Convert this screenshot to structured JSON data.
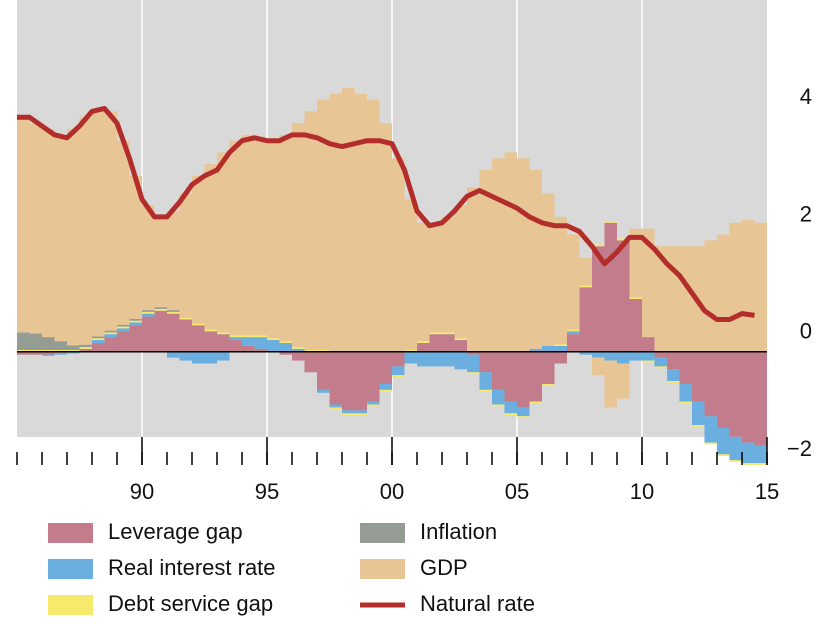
{
  "chart_data": {
    "type": "bar",
    "stacked": true,
    "x": [
      1985,
      1985.5,
      1986,
      1986.5,
      1987,
      1987.5,
      1988,
      1988.5,
      1989,
      1989.5,
      1990,
      1990.5,
      1991,
      1991.5,
      1992,
      1992.5,
      1993,
      1993.5,
      1994,
      1994.5,
      1995,
      1995.5,
      1996,
      1996.5,
      1997,
      1997.5,
      1998,
      1998.5,
      1999,
      1999.5,
      2000,
      2000.5,
      2001,
      2001.5,
      2002,
      2002.5,
      2003,
      2003.5,
      2004,
      2004.5,
      2005,
      2005.5,
      2006,
      2006.5,
      2007,
      2007.5,
      2008,
      2008.5,
      2009,
      2009.5,
      2010,
      2010.5,
      2011,
      2011.5,
      2012,
      2012.5,
      2013,
      2013.5,
      2014,
      2014.5
    ],
    "series": [
      {
        "name": "Leverage gap",
        "color": "#c27c8c",
        "values": [
          -0.05,
          -0.05,
          -0.05,
          -0.02,
          0,
          0.05,
          0.15,
          0.25,
          0.35,
          0.45,
          0.6,
          0.7,
          0.65,
          0.55,
          0.45,
          0.35,
          0.3,
          0.2,
          0.1,
          0.05,
          0,
          -0.05,
          -0.15,
          -0.35,
          -0.65,
          -0.9,
          -1.0,
          -1.0,
          -0.85,
          -0.55,
          -0.25,
          0,
          0.15,
          0.3,
          0.3,
          0.2,
          -0.05,
          -0.35,
          -0.65,
          -0.85,
          -0.95,
          -0.85,
          -0.55,
          -0.2,
          0.3,
          1.1,
          1.8,
          2.2,
          1.9,
          0.9,
          0.25,
          -0.1,
          -0.3,
          -0.55,
          -0.85,
          -1.1,
          -1.3,
          -1.45,
          -1.55,
          -1.6
        ]
      },
      {
        "name": "Real interest rate",
        "color": "#6aafe0",
        "values": [
          0,
          0,
          -0.02,
          -0.03,
          -0.03,
          0,
          0.05,
          0.05,
          0.05,
          0.05,
          0.05,
          0,
          -0.1,
          -0.15,
          -0.2,
          -0.2,
          -0.15,
          0.05,
          0.15,
          0.2,
          0.2,
          0.15,
          0.05,
          0,
          -0.05,
          -0.05,
          -0.05,
          -0.05,
          -0.05,
          -0.1,
          -0.15,
          -0.2,
          -0.25,
          -0.25,
          -0.25,
          -0.3,
          -0.3,
          -0.3,
          -0.25,
          -0.2,
          -0.15,
          0.05,
          0.1,
          0.1,
          0.05,
          -0.05,
          -0.1,
          -0.15,
          -0.2,
          -0.15,
          -0.15,
          -0.15,
          -0.2,
          -0.3,
          -0.4,
          -0.45,
          -0.45,
          -0.4,
          -0.35,
          -0.3
        ]
      },
      {
        "name": "Debt service gap",
        "color": "#f7e96b",
        "values": [
          0.03,
          0.03,
          0.03,
          0.03,
          0.03,
          0.03,
          0.03,
          0.03,
          0.03,
          0.03,
          0.03,
          0.03,
          0.03,
          0.03,
          0.03,
          0.03,
          0.03,
          0.03,
          0.03,
          0.03,
          0.03,
          0.03,
          0.03,
          0.03,
          0.03,
          -0.03,
          -0.03,
          -0.03,
          -0.03,
          -0.03,
          -0.03,
          0.03,
          0.03,
          0.03,
          0.03,
          0.03,
          -0.03,
          -0.03,
          -0.03,
          -0.03,
          -0.03,
          -0.03,
          -0.03,
          0.03,
          0.03,
          0.03,
          0.03,
          0.03,
          0.03,
          0.03,
          -0.03,
          -0.03,
          -0.03,
          -0.03,
          -0.03,
          -0.03,
          -0.03,
          -0.03,
          -0.03,
          -0.03
        ]
      },
      {
        "name": "Inflation",
        "color": "#959c93",
        "values": [
          0.3,
          0.28,
          0.22,
          0.15,
          0.08,
          0.04,
          0.03,
          0.03,
          0.03,
          0.03,
          0.03,
          0.03,
          0.03,
          0,
          0,
          0,
          0,
          0,
          0,
          0,
          0,
          0,
          0,
          0,
          0,
          0,
          0,
          0,
          0,
          0,
          0,
          0,
          0,
          0,
          0,
          0,
          0,
          0,
          0,
          0,
          0,
          0,
          0,
          0,
          0,
          0,
          0,
          0,
          0,
          0,
          0,
          0,
          0,
          0,
          0,
          0,
          0,
          0,
          0,
          0
        ]
      },
      {
        "name": "GDP",
        "color": "#e8c594",
        "values": [
          3.67,
          3.59,
          3.55,
          3.52,
          3.69,
          3.88,
          3.84,
          3.74,
          3.14,
          2.44,
          1.79,
          1.54,
          1.69,
          2.12,
          2.52,
          2.82,
          3.07,
          3.32,
          3.42,
          3.32,
          3.37,
          3.52,
          3.82,
          4.07,
          4.27,
          4.4,
          4.5,
          4.4,
          4.3,
          3.9,
          3.3,
          2.57,
          2.02,
          1.87,
          1.97,
          2.27,
          2.8,
          3.1,
          3.3,
          3.4,
          3.3,
          3.05,
          2.6,
          2.17,
          1.62,
          0.47,
          -0.3,
          -0.8,
          -0.6,
          1.17,
          1.85,
          1.8,
          1.8,
          1.8,
          1.8,
          1.9,
          2.0,
          2.2,
          2.25,
          2.2
        ]
      },
      {
        "name": "Natural rate",
        "color": "#b32d2b",
        "type": "line",
        "values": [
          4.0,
          4.0,
          3.85,
          3.7,
          3.65,
          3.85,
          4.1,
          4.15,
          3.9,
          3.3,
          2.6,
          2.3,
          2.3,
          2.55,
          2.85,
          3.0,
          3.1,
          3.4,
          3.6,
          3.65,
          3.6,
          3.6,
          3.7,
          3.7,
          3.65,
          3.55,
          3.5,
          3.55,
          3.6,
          3.6,
          3.55,
          3.1,
          2.4,
          2.15,
          2.2,
          2.4,
          2.65,
          2.75,
          2.65,
          2.55,
          2.45,
          2.3,
          2.2,
          2.15,
          2.15,
          2.05,
          1.8,
          1.5,
          1.7,
          1.95,
          1.95,
          1.75,
          1.5,
          1.3,
          1.0,
          0.7,
          0.55,
          0.55,
          0.65,
          0.62
        ]
      }
    ],
    "xlim": [
      1985,
      2015
    ],
    "xticks": [
      {
        "value": 1990,
        "label": "90"
      },
      {
        "value": 1995,
        "label": "95"
      },
      {
        "value": 2000,
        "label": "00"
      },
      {
        "value": 2005,
        "label": "05"
      },
      {
        "value": 2010,
        "label": "10"
      },
      {
        "value": 2015,
        "label": "15"
      }
    ],
    "xminorticks": [
      1985,
      1986,
      1987,
      1988,
      1989,
      1990,
      1991,
      1992,
      1993,
      1994,
      1995,
      1996,
      1997,
      1998,
      1999,
      2000,
      2001,
      2002,
      2003,
      2004,
      2005,
      2006,
      2007,
      2008,
      2009,
      2010,
      2011,
      2012,
      2013,
      2014,
      2015
    ],
    "ylim": [
      -2,
      6
    ],
    "yticks": [
      {
        "value": -2,
        "label": "−2"
      },
      0,
      2,
      4
    ],
    "grid": true
  }
}
